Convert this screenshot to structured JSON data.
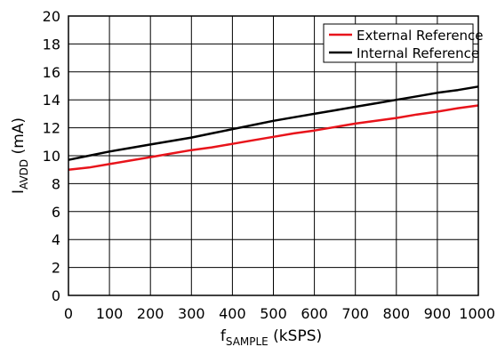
{
  "chart_data": {
    "type": "line",
    "title": "",
    "xlabel": "f",
    "xlabel_sub": "SAMPLE",
    "xlabel_unit": " (kSPS)",
    "ylabel": "I",
    "ylabel_sub": "AVDD",
    "ylabel_unit": " (mA)",
    "xlim": [
      0,
      1000
    ],
    "ylim": [
      0,
      20
    ],
    "xticks": [
      0,
      100,
      200,
      300,
      400,
      500,
      600,
      700,
      800,
      900,
      1000
    ],
    "yticks": [
      0,
      2,
      4,
      6,
      8,
      10,
      12,
      14,
      16,
      18,
      20
    ],
    "grid": true,
    "legend_position": "top-right",
    "series": [
      {
        "name": "External Reference",
        "color": "#e8141b",
        "x": [
          0,
          50,
          100,
          150,
          200,
          250,
          300,
          350,
          400,
          450,
          500,
          550,
          600,
          650,
          700,
          750,
          800,
          850,
          900,
          950,
          1000
        ],
        "y": [
          9.0,
          9.15,
          9.4,
          9.65,
          9.9,
          10.15,
          10.4,
          10.6,
          10.85,
          11.1,
          11.35,
          11.6,
          11.8,
          12.05,
          12.3,
          12.5,
          12.7,
          12.95,
          13.15,
          13.4,
          13.6
        ]
      },
      {
        "name": "Internal Reference",
        "color": "#000000",
        "x": [
          0,
          50,
          100,
          150,
          200,
          250,
          300,
          350,
          400,
          450,
          500,
          550,
          600,
          650,
          700,
          750,
          800,
          850,
          900,
          950,
          1000
        ],
        "y": [
          9.7,
          10.0,
          10.3,
          10.55,
          10.8,
          11.05,
          11.3,
          11.6,
          11.9,
          12.2,
          12.5,
          12.75,
          13.0,
          13.25,
          13.5,
          13.75,
          14.0,
          14.25,
          14.5,
          14.7,
          14.95
        ]
      }
    ]
  }
}
